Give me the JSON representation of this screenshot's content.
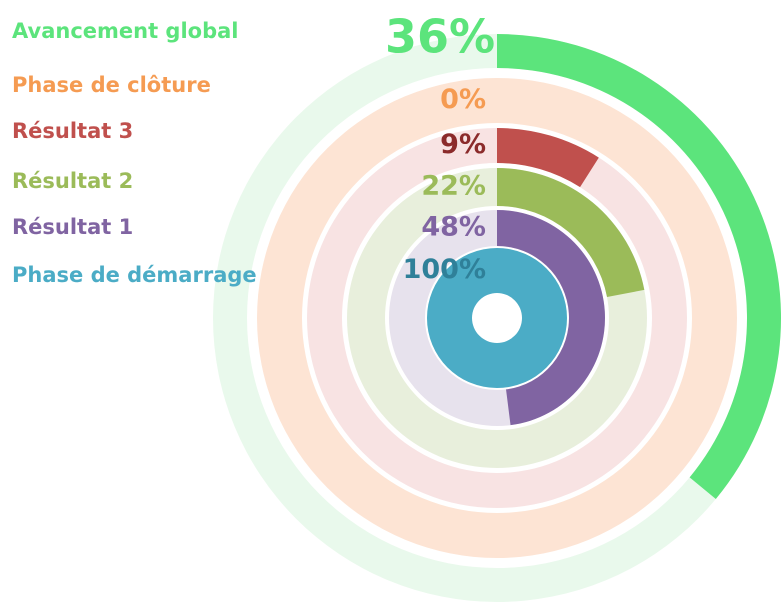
{
  "chart_data": {
    "type": "radial_bar",
    "categories": [
      "Avancement global",
      "Phase de clôture",
      "Résultat 3",
      "Résultat 2",
      "Résultat 1",
      "Phase de démarrage"
    ],
    "values": [
      36,
      0,
      9,
      22,
      48,
      100
    ],
    "value_labels": [
      "36%",
      "0%",
      "9%",
      "22%",
      "48%",
      "100%"
    ],
    "colors": [
      "#5ce47c",
      "#f59b52",
      "#c0504d",
      "#9bbb59",
      "#8064a2",
      "#4bacc6"
    ],
    "track_colors": [
      "#e9f9ec",
      "#fde4d4",
      "#f8e3e3",
      "#e8efdc",
      "#e7e2ed",
      "#e5f2f6"
    ],
    "label_colors": [
      "#5ce47c",
      "#f59b52",
      "#8b2b2b",
      "#9bbb59",
      "#8064a2",
      "#2f8099"
    ],
    "vmax": 100
  }
}
